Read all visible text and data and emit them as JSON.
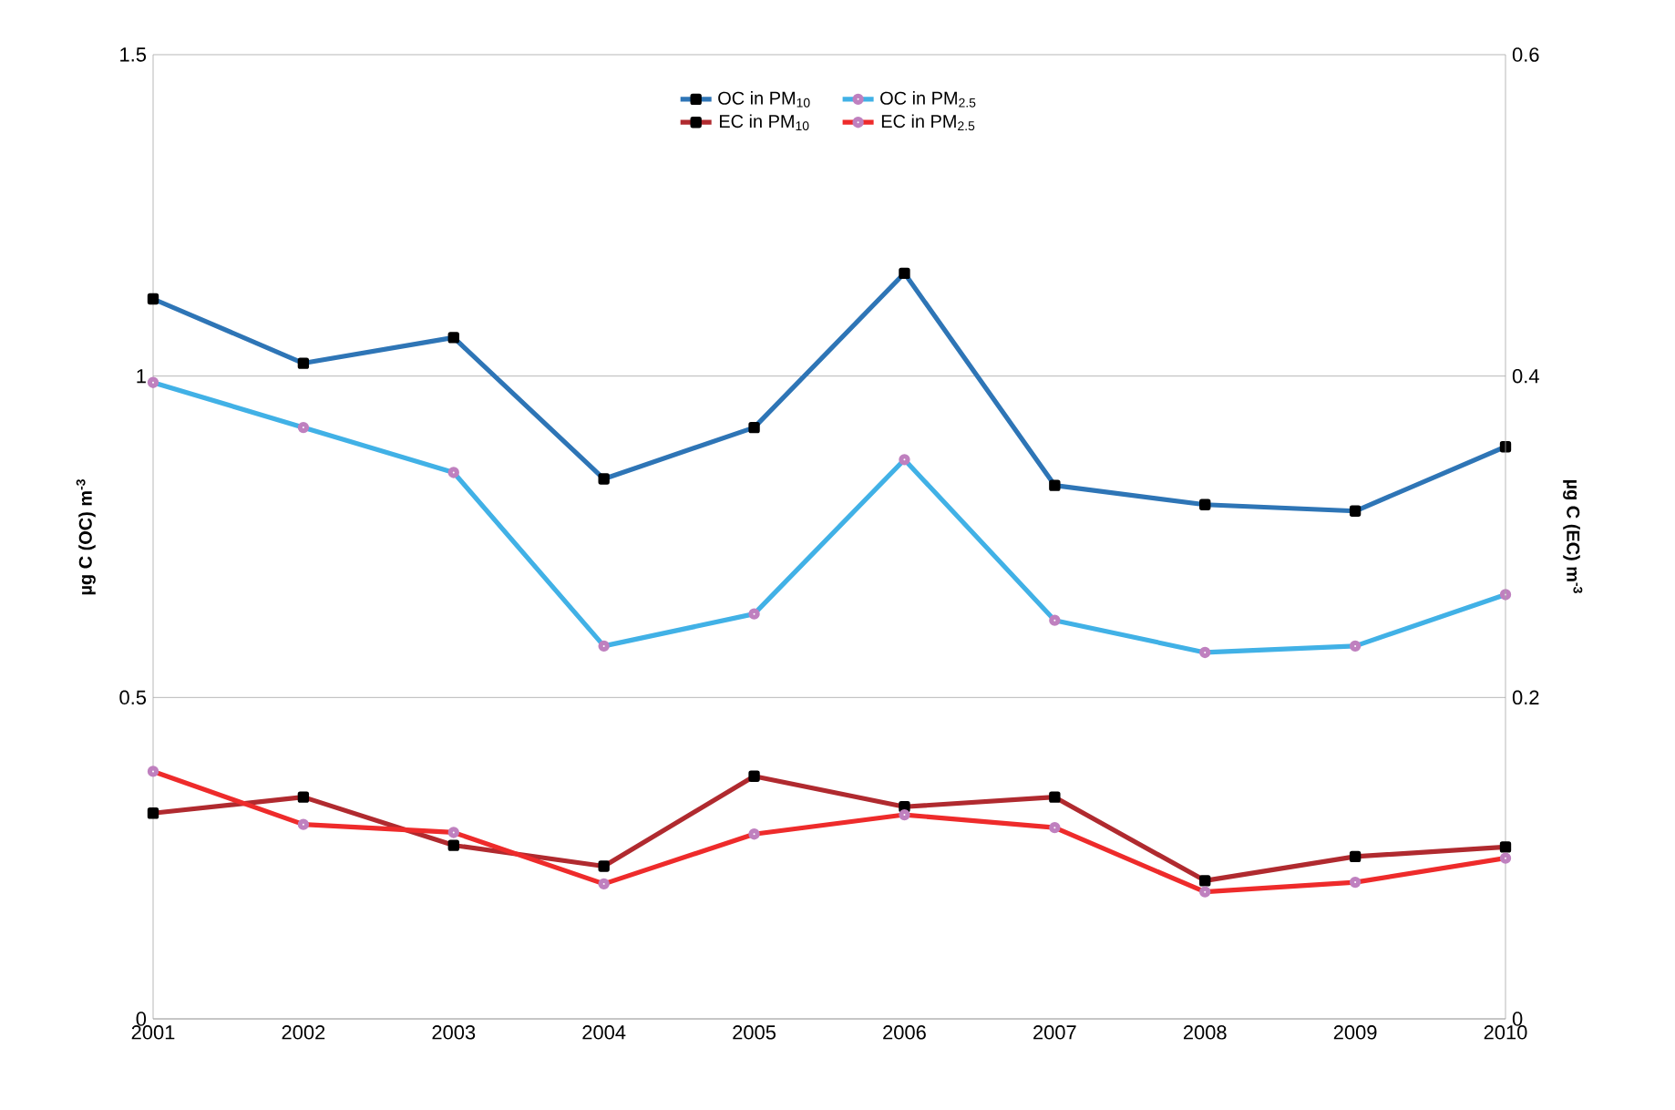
{
  "chart_data": {
    "type": "line",
    "xlabel": null,
    "ylabel": "µg C (OC) m$^{-3}$",
    "y2label": "µg C (EC) m$^{-3}$",
    "categories": [
      "2001",
      "2002",
      "2003",
      "2004",
      "2005",
      "2006",
      "2007",
      "2008",
      "2009",
      "2010"
    ],
    "series": [
      {
        "name": "OC in PM$_{10}$",
        "color": "#2e75b6",
        "marker": "square",
        "values": [
          1.12,
          1.02,
          1.06,
          0.84,
          0.92,
          1.16,
          0.83,
          0.8,
          0.79,
          0.89
        ]
      },
      {
        "name": "OC in PM$_{2.5}$",
        "color": "#41b1e6",
        "marker": "circle",
        "values": [
          0.99,
          0.92,
          0.85,
          0.58,
          0.63,
          0.87,
          0.62,
          0.57,
          0.58,
          0.66
        ]
      },
      {
        "name": "EC in PM$_{10}$",
        "color": "#b02a2f",
        "marker": "square",
        "axis": "y2",
        "values": [
          0.128,
          0.138,
          0.108,
          0.095,
          0.151,
          0.132,
          0.138,
          0.086,
          0.101,
          0.107
        ]
      },
      {
        "name": "EC in PM$_{2.5}$",
        "color": "#ee2b2b",
        "marker": "circle",
        "axis": "y2",
        "values": [
          0.154,
          0.121,
          0.116,
          0.084,
          0.115,
          0.127,
          0.119,
          0.079,
          0.085,
          0.1
        ]
      }
    ],
    "ylim": [
      0,
      1.5
    ],
    "yticks": [
      0,
      0.5,
      1,
      1.5
    ],
    "y2lim": [
      0,
      0.6
    ],
    "y2ticks": [
      0,
      0.2,
      0.4,
      0.6
    ],
    "grid": "y",
    "legend": "top",
    "line_style": "solid"
  }
}
